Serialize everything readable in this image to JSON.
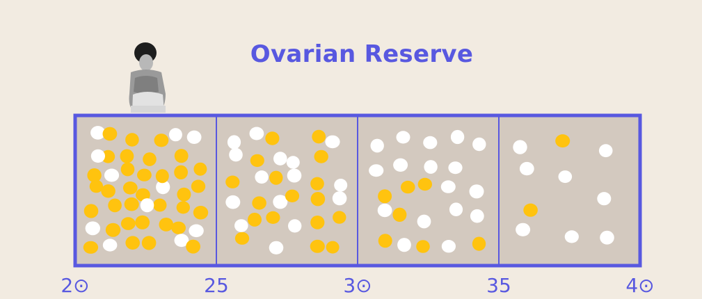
{
  "title": "Ovarian Reserve",
  "colors": {
    "accent": "#5858e0",
    "panel": "#d3c9bf",
    "background": "#f2ebe1",
    "egg_yellow": "#ffc30f",
    "egg_white": "#ffffff"
  },
  "axis": {
    "ticks": [
      "2⊙",
      "25",
      "3⊙",
      "35",
      "4⊙"
    ]
  },
  "panels": [
    {
      "age_range": [
        20,
        25
      ],
      "yellow_eggs": 34,
      "white_eggs": 11
    },
    {
      "age_range": [
        25,
        30
      ],
      "yellow_eggs": 17,
      "white_eggs": 15
    },
    {
      "age_range": [
        30,
        35
      ],
      "yellow_eggs": 7,
      "white_eggs": 17
    },
    {
      "age_range": [
        35,
        40
      ],
      "yellow_eggs": 2,
      "white_eggs": 8
    }
  ],
  "illustration": {
    "icon": "seated-woman-figure-icon"
  }
}
